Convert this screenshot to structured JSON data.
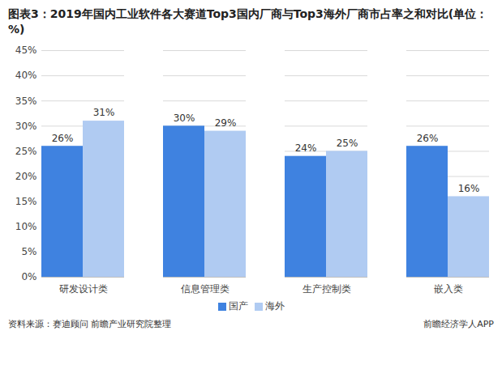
{
  "chart_data": {
    "type": "bar",
    "title": "图表3：2019年国内工业软件各大赛道Top3国内厂商与Top3海外厂商市占率之和对比(单位：%)",
    "source": "资料来源：赛迪顾问 前瞻产业研究院整理",
    "brand": "前瞻经济学人APP",
    "categories": [
      "研发设计类",
      "信息管理类",
      "生产控制类",
      "嵌入类"
    ],
    "series": [
      {
        "name": "国产",
        "color": "#3f82e0",
        "values": [
          26,
          30,
          24,
          26
        ],
        "value_labels": [
          "26%",
          "30%",
          "24%",
          "26%"
        ]
      },
      {
        "name": "海外",
        "color": "#b0cbf2",
        "values": [
          31,
          29,
          25,
          16
        ],
        "value_labels": [
          "31%",
          "29%",
          "25%",
          "16%"
        ]
      }
    ],
    "ylim": [
      0,
      45
    ],
    "yticks": [
      {
        "value": 0,
        "label": "0%"
      },
      {
        "value": 5,
        "label": "5%"
      },
      {
        "value": 10,
        "label": "10%"
      },
      {
        "value": 15,
        "label": "15%"
      },
      {
        "value": 20,
        "label": "20%"
      },
      {
        "value": 25,
        "label": "25%"
      },
      {
        "value": 30,
        "label": "30%"
      },
      {
        "value": 35,
        "label": "35%"
      },
      {
        "value": 40,
        "label": "40%"
      },
      {
        "value": 45,
        "label": "45%"
      }
    ],
    "grid": true,
    "data_labels": true,
    "legend": "bottom"
  }
}
